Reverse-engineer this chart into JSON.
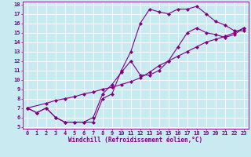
{
  "xlabel": "Windchill (Refroidissement éolien,°C)",
  "bg_color": "#c8eaf0",
  "line_color": "#800080",
  "grid_color": "#ffffff",
  "xlim": [
    -0.5,
    23.5
  ],
  "ylim": [
    4.8,
    18.3
  ],
  "xticks": [
    0,
    1,
    2,
    3,
    4,
    5,
    6,
    7,
    8,
    9,
    10,
    11,
    12,
    13,
    14,
    15,
    16,
    17,
    18,
    19,
    20,
    21,
    22,
    23
  ],
  "yticks": [
    5,
    6,
    7,
    8,
    9,
    10,
    11,
    12,
    13,
    14,
    15,
    16,
    17,
    18
  ],
  "line1_x": [
    0,
    1,
    2,
    3,
    4,
    5,
    6,
    7,
    8,
    9,
    10,
    11,
    12,
    13,
    14,
    15,
    16,
    17,
    18,
    19,
    20,
    21,
    22,
    23
  ],
  "line1_y": [
    7.0,
    6.5,
    7.0,
    6.0,
    5.5,
    5.5,
    5.5,
    5.5,
    8.0,
    8.5,
    11.0,
    13.0,
    16.0,
    17.5,
    17.2,
    17.0,
    17.5,
    17.5,
    17.8,
    17.0,
    16.2,
    15.8,
    15.2,
    15.2
  ],
  "line2_x": [
    0,
    2,
    3,
    4,
    5,
    6,
    7,
    8,
    9,
    10,
    11,
    12,
    13,
    14,
    15,
    16,
    17,
    18,
    19,
    20,
    21,
    22,
    23
  ],
  "line2_y": [
    7.0,
    7.5,
    7.8,
    8.0,
    8.2,
    8.5,
    8.7,
    9.0,
    9.2,
    9.5,
    9.8,
    10.2,
    10.8,
    11.5,
    12.0,
    12.5,
    13.0,
    13.5,
    14.0,
    14.3,
    14.6,
    15.0,
    15.5
  ],
  "line3_x": [
    0,
    1,
    2,
    3,
    4,
    5,
    6,
    7,
    8,
    9,
    10,
    11,
    12,
    13,
    14,
    15,
    16,
    17,
    18,
    19,
    20,
    21,
    22,
    23
  ],
  "line3_y": [
    7.0,
    6.5,
    7.0,
    6.0,
    5.5,
    5.5,
    5.5,
    6.0,
    8.5,
    9.5,
    10.8,
    12.0,
    10.5,
    10.5,
    11.0,
    12.0,
    13.5,
    15.0,
    15.5,
    15.0,
    14.8,
    14.5,
    14.8,
    15.5
  ],
  "marker": "D",
  "markersize": 2.0,
  "linewidth": 0.8,
  "fontsize_label": 5.5,
  "fontsize_tick": 5.0
}
